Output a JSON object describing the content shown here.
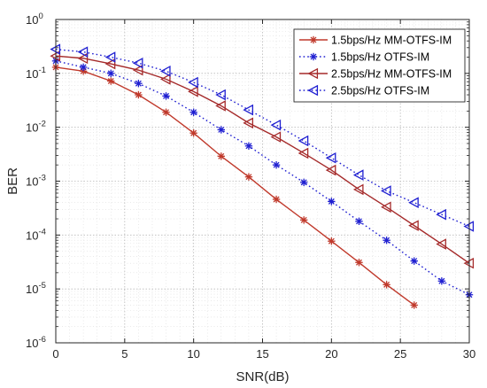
{
  "chart_data": {
    "type": "line",
    "xlabel": "SNR(dB)",
    "ylabel": "BER",
    "xlim": [
      0,
      30
    ],
    "ylim": [
      1e-06,
      1
    ],
    "yscale": "log",
    "grid": true,
    "legend_position": "top-right",
    "x_ticks": [
      "0",
      "5",
      "10",
      "15",
      "20",
      "25",
      "30"
    ],
    "y_ticks": [
      {
        "base": "10",
        "exp": "0"
      },
      {
        "base": "10",
        "exp": "-1"
      },
      {
        "base": "10",
        "exp": "-2"
      },
      {
        "base": "10",
        "exp": "-3"
      },
      {
        "base": "10",
        "exp": "-4"
      },
      {
        "base": "10",
        "exp": "-5"
      },
      {
        "base": "10",
        "exp": "-6"
      }
    ],
    "series": [
      {
        "name": "1.5bps/Hz MM-OTFS-IM",
        "color": "#c0392b",
        "line": "solid",
        "marker": "asterisk",
        "x": [
          0,
          2,
          4,
          6,
          8,
          10,
          12,
          14,
          16,
          18,
          20,
          22,
          24,
          26
        ],
        "y": [
          0.13,
          0.11,
          0.072,
          0.04,
          0.019,
          0.0078,
          0.0029,
          0.0012,
          0.00046,
          0.00019,
          7.7e-05,
          3.1e-05,
          1.2e-05,
          5e-06
        ]
      },
      {
        "name": "1.5bps/Hz OTFS-IM",
        "color": "#1f1fd1",
        "line": "dotted",
        "marker": "asterisk",
        "x": [
          0,
          2,
          4,
          6,
          8,
          10,
          12,
          14,
          16,
          18,
          20,
          22,
          24,
          26,
          28,
          30
        ],
        "y": [
          0.17,
          0.13,
          0.1,
          0.065,
          0.038,
          0.019,
          0.009,
          0.0045,
          0.002,
          0.00095,
          0.00042,
          0.00018,
          8e-05,
          3.3e-05,
          1.4e-05,
          7.8e-06
        ]
      },
      {
        "name": "2.5bps/Hz MM-OTFS-IM",
        "color": "#a52a2a",
        "line": "solid",
        "marker": "triangle-left",
        "x": [
          0,
          2,
          4,
          6,
          8,
          10,
          12,
          14,
          16,
          18,
          20,
          22,
          24,
          26,
          28,
          30
        ],
        "y": [
          0.21,
          0.19,
          0.15,
          0.115,
          0.078,
          0.046,
          0.025,
          0.012,
          0.0066,
          0.0033,
          0.0016,
          0.0007,
          0.00033,
          0.00015,
          6.8e-05,
          3e-05
        ]
      },
      {
        "name": "2.5bps/Hz OTFS-IM",
        "color": "#1f1fd1",
        "line": "dotted",
        "marker": "triangle-left",
        "x": [
          0,
          2,
          4,
          6,
          8,
          10,
          12,
          14,
          16,
          18,
          20,
          22,
          24,
          26,
          28,
          30
        ],
        "y": [
          0.28,
          0.25,
          0.2,
          0.155,
          0.11,
          0.068,
          0.04,
          0.021,
          0.011,
          0.0056,
          0.0027,
          0.0013,
          0.00066,
          0.0004,
          0.00024,
          0.000145
        ]
      }
    ]
  }
}
